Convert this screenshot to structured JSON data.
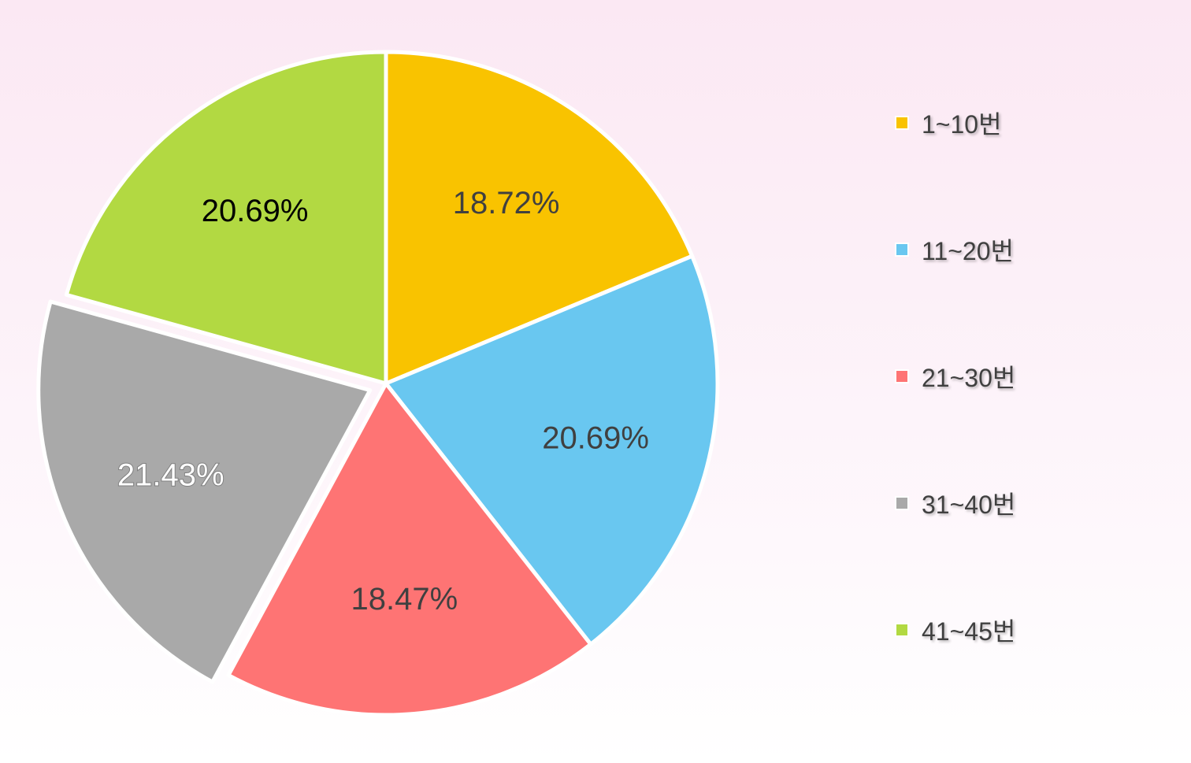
{
  "chart_data": {
    "type": "pie",
    "categories": [
      "1~10번",
      "11~20번",
      "21~30번",
      "31~40번",
      "41~45번"
    ],
    "values": [
      18.72,
      20.69,
      18.47,
      21.43,
      20.69
    ],
    "data_labels": [
      "18.72%",
      "20.69%",
      "18.47%",
      "21.43%",
      "20.69%"
    ],
    "colors": [
      "#f9c300",
      "#69c7f0",
      "#fe7474",
      "#a9a9a9",
      "#b2d942"
    ],
    "label_colors": [
      "#404040",
      "#404040",
      "#404040",
      "#ffffff",
      "#000000"
    ],
    "exploded_slice": 3,
    "legend_position": "right"
  }
}
